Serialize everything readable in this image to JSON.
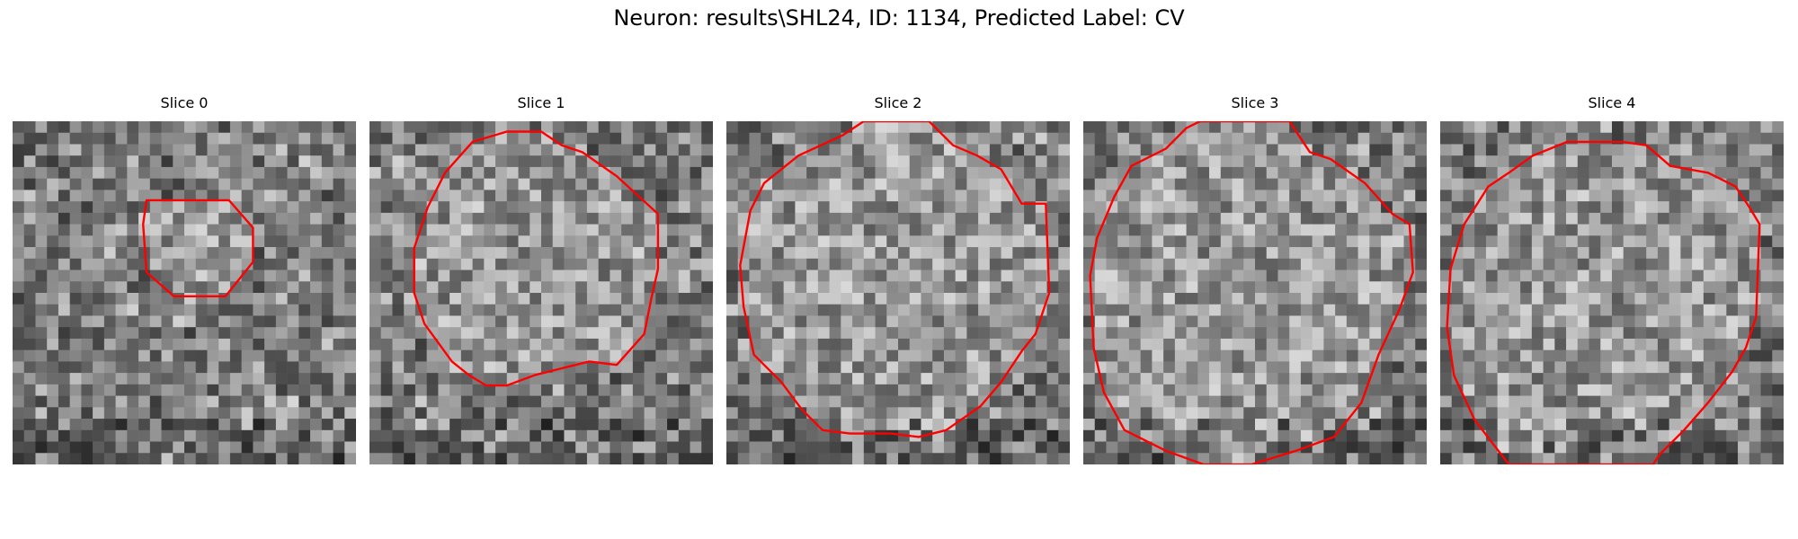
{
  "figure": {
    "title": "Neuron: results\\SHL24, ID: 1134, Predicted Label: CV",
    "contour_color": "#ff0000",
    "colormap": "grayscale"
  },
  "panels": [
    {
      "title": "Slice 0",
      "seed": 11,
      "contour": [
        [
          0.39,
          0.23
        ],
        [
          0.63,
          0.23
        ],
        [
          0.7,
          0.31
        ],
        [
          0.7,
          0.41
        ],
        [
          0.62,
          0.51
        ],
        [
          0.47,
          0.51
        ],
        [
          0.39,
          0.44
        ],
        [
          0.38,
          0.3
        ]
      ]
    },
    {
      "title": "Slice 1",
      "seed": 23,
      "contour": [
        [
          0.3,
          0.06
        ],
        [
          0.4,
          0.03
        ],
        [
          0.5,
          0.03
        ],
        [
          0.56,
          0.07
        ],
        [
          0.62,
          0.09
        ],
        [
          0.72,
          0.16
        ],
        [
          0.84,
          0.27
        ],
        [
          0.84,
          0.43
        ],
        [
          0.82,
          0.52
        ],
        [
          0.8,
          0.62
        ],
        [
          0.72,
          0.71
        ],
        [
          0.64,
          0.7
        ],
        [
          0.56,
          0.72
        ],
        [
          0.48,
          0.74
        ],
        [
          0.4,
          0.77
        ],
        [
          0.34,
          0.77
        ],
        [
          0.29,
          0.74
        ],
        [
          0.24,
          0.7
        ],
        [
          0.16,
          0.59
        ],
        [
          0.13,
          0.5
        ],
        [
          0.13,
          0.37
        ],
        [
          0.17,
          0.25
        ],
        [
          0.22,
          0.15
        ]
      ]
    },
    {
      "title": "Slice 2",
      "seed": 37,
      "contour": [
        [
          0.21,
          0.1
        ],
        [
          0.34,
          0.04
        ],
        [
          0.4,
          0.0
        ],
        [
          0.59,
          0.0
        ],
        [
          0.66,
          0.07
        ],
        [
          0.73,
          0.1
        ],
        [
          0.8,
          0.14
        ],
        [
          0.86,
          0.24
        ],
        [
          0.93,
          0.24
        ],
        [
          0.94,
          0.5
        ],
        [
          0.9,
          0.62
        ],
        [
          0.86,
          0.67
        ],
        [
          0.8,
          0.76
        ],
        [
          0.74,
          0.83
        ],
        [
          0.64,
          0.9
        ],
        [
          0.56,
          0.92
        ],
        [
          0.48,
          0.91
        ],
        [
          0.36,
          0.91
        ],
        [
          0.28,
          0.9
        ],
        [
          0.22,
          0.84
        ],
        [
          0.16,
          0.76
        ],
        [
          0.08,
          0.68
        ],
        [
          0.05,
          0.54
        ],
        [
          0.04,
          0.42
        ],
        [
          0.07,
          0.26
        ],
        [
          0.11,
          0.18
        ]
      ]
    },
    {
      "title": "Slice 3",
      "seed": 53,
      "contour": [
        [
          0.24,
          0.08
        ],
        [
          0.3,
          0.02
        ],
        [
          0.34,
          0.0
        ],
        [
          0.6,
          0.0
        ],
        [
          0.66,
          0.09
        ],
        [
          0.72,
          0.11
        ],
        [
          0.82,
          0.18
        ],
        [
          0.9,
          0.27
        ],
        [
          0.95,
          0.3
        ],
        [
          0.96,
          0.44
        ],
        [
          0.92,
          0.55
        ],
        [
          0.86,
          0.68
        ],
        [
          0.81,
          0.82
        ],
        [
          0.73,
          0.92
        ],
        [
          0.62,
          0.96
        ],
        [
          0.49,
          1.0
        ],
        [
          0.35,
          1.0
        ],
        [
          0.24,
          0.96
        ],
        [
          0.12,
          0.9
        ],
        [
          0.06,
          0.79
        ],
        [
          0.03,
          0.66
        ],
        [
          0.02,
          0.45
        ],
        [
          0.04,
          0.34
        ],
        [
          0.09,
          0.22
        ],
        [
          0.14,
          0.13
        ]
      ]
    },
    {
      "title": "Slice 4",
      "seed": 71,
      "contour": [
        [
          0.2,
          1.0
        ],
        [
          0.1,
          0.87
        ],
        [
          0.04,
          0.74
        ],
        [
          0.02,
          0.6
        ],
        [
          0.03,
          0.43
        ],
        [
          0.07,
          0.3
        ],
        [
          0.14,
          0.19
        ],
        [
          0.2,
          0.15
        ],
        [
          0.27,
          0.1
        ],
        [
          0.37,
          0.06
        ],
        [
          0.43,
          0.06
        ],
        [
          0.53,
          0.06
        ],
        [
          0.6,
          0.07
        ],
        [
          0.67,
          0.13
        ],
        [
          0.78,
          0.15
        ],
        [
          0.86,
          0.19
        ],
        [
          0.9,
          0.25
        ],
        [
          0.93,
          0.3
        ],
        [
          0.92,
          0.57
        ],
        [
          0.89,
          0.66
        ],
        [
          0.85,
          0.73
        ],
        [
          0.78,
          0.82
        ],
        [
          0.71,
          0.9
        ],
        [
          0.64,
          0.97
        ],
        [
          0.62,
          1.0
        ]
      ]
    }
  ]
}
